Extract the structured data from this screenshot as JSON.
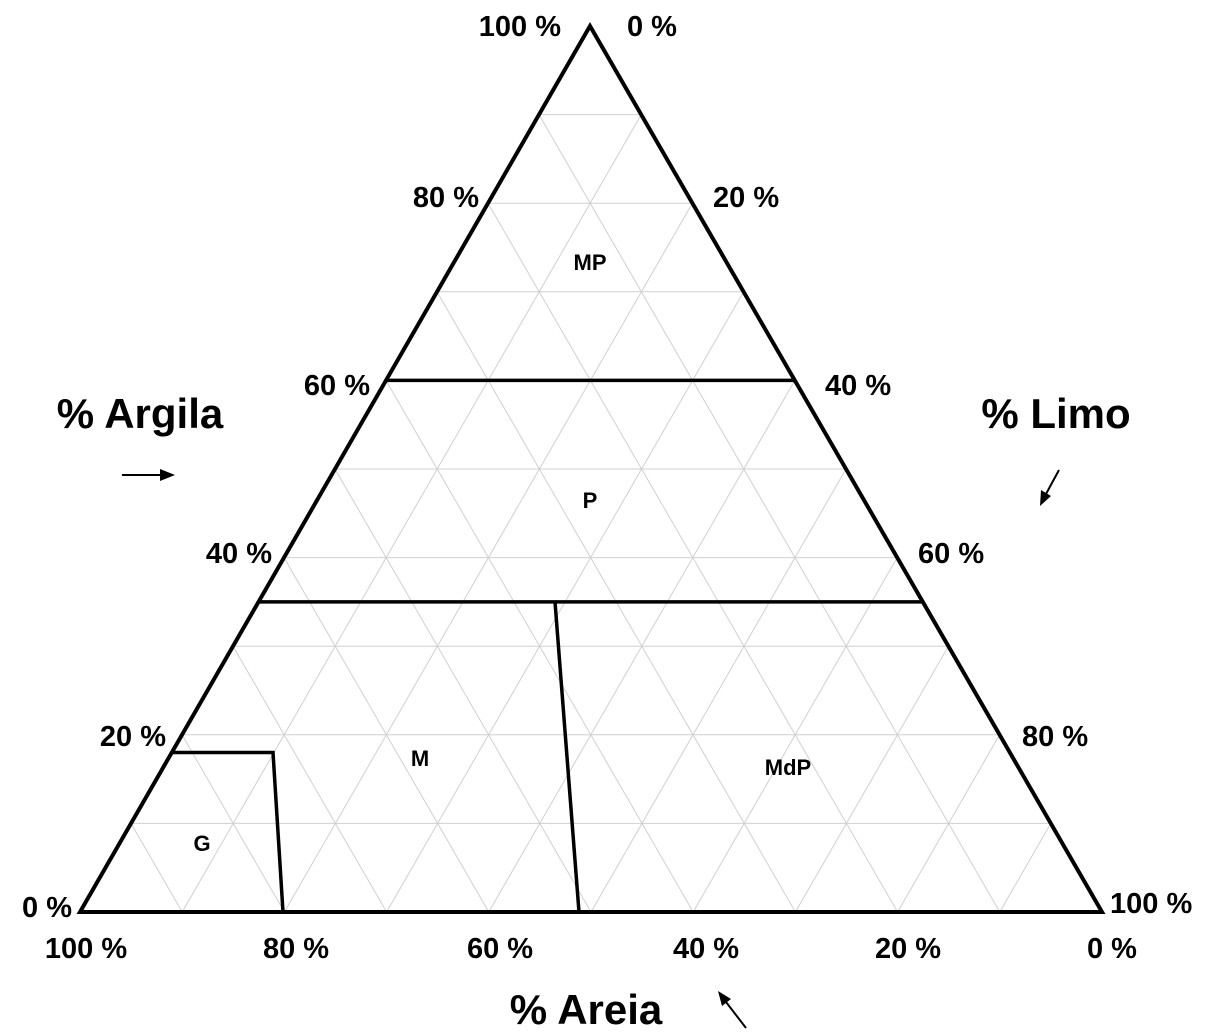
{
  "axes": {
    "argila": {
      "title": "% Argila",
      "ticks": [
        "0 %",
        "20 %",
        "40 %",
        "60 %",
        "80 %",
        "100 %"
      ],
      "tick_values": [
        0,
        20,
        40,
        60,
        80,
        100
      ]
    },
    "limo": {
      "title": "% Limo",
      "ticks": [
        "0 %",
        "20 %",
        "40 %",
        "60 %",
        "80 %",
        "100 %"
      ],
      "tick_values": [
        0,
        20,
        40,
        60,
        80,
        100
      ]
    },
    "areia": {
      "title": "% Areia",
      "ticks": [
        "100 %",
        "80 %",
        "60 %",
        "40 %",
        "20 %",
        "0 %"
      ],
      "tick_values": [
        100,
        80,
        60,
        40,
        20,
        0
      ]
    }
  },
  "regions": [
    {
      "label": "MP"
    },
    {
      "label": "P"
    },
    {
      "label": "M"
    },
    {
      "label": "MdP"
    },
    {
      "label": "G"
    }
  ],
  "boundaries": {
    "argila_lines": [
      60,
      35
    ],
    "g_clay_top": 18
  },
  "grid": {
    "step": 10,
    "shown": true
  },
  "colors": {
    "outline": "#000000",
    "grid": "#d0d0d0",
    "text": "#000000"
  }
}
